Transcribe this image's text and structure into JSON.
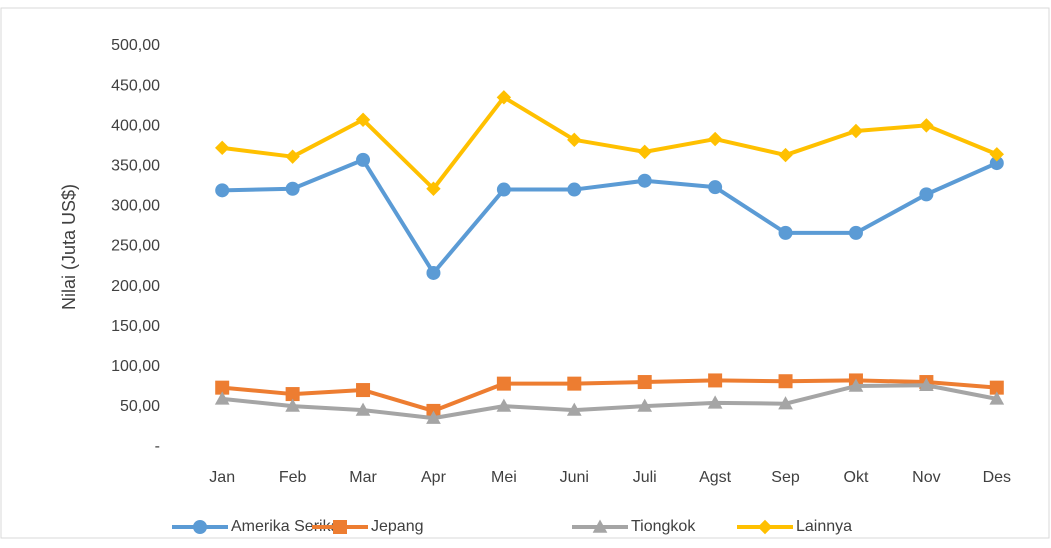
{
  "chart_data": {
    "type": "line",
    "y_label": "Nilai (Juta US$)",
    "categories": [
      "Jan",
      "Feb",
      "Mar",
      "Apr",
      "Mei",
      "Juni",
      "Juli",
      "Agst",
      "Sep",
      "Okt",
      "Nov",
      "Des"
    ],
    "series": [
      {
        "name": "Amerika Serikat",
        "color": "#5b9bd5",
        "marker": "circle",
        "values": [
          320,
          322,
          358,
          217,
          321,
          321,
          332,
          324,
          267,
          267,
          315,
          354
        ]
      },
      {
        "name": "Jepang",
        "color": "#ed7d31",
        "marker": "square",
        "values": [
          74,
          66,
          71,
          45,
          79,
          79,
          81,
          83,
          82,
          83,
          81,
          74
        ]
      },
      {
        "name": "Tiongkok",
        "color": "#a5a5a5",
        "marker": "triangle",
        "values": [
          60,
          51,
          46,
          36,
          51,
          46,
          51,
          55,
          54,
          76,
          77,
          60
        ]
      },
      {
        "name": "Lainnya",
        "color": "#ffc000",
        "marker": "diamond",
        "values": [
          373,
          362,
          408,
          322,
          436,
          383,
          368,
          384,
          364,
          394,
          401,
          365
        ]
      }
    ],
    "ylim": [
      0,
      500
    ],
    "yticks": [
      {
        "value": 0,
        "label": "-"
      },
      {
        "value": 50,
        "label": "50,00"
      },
      {
        "value": 100,
        "label": "100,00"
      },
      {
        "value": 150,
        "label": "150,00"
      },
      {
        "value": 200,
        "label": "200,00"
      },
      {
        "value": 250,
        "label": "250,00"
      },
      {
        "value": 300,
        "label": "300,00"
      },
      {
        "value": 350,
        "label": "350,00"
      },
      {
        "value": 400,
        "label": "400,00"
      },
      {
        "value": 450,
        "label": "450,00"
      },
      {
        "value": 500,
        "label": "500,00"
      }
    ],
    "grid": false,
    "legend": "bottom"
  }
}
